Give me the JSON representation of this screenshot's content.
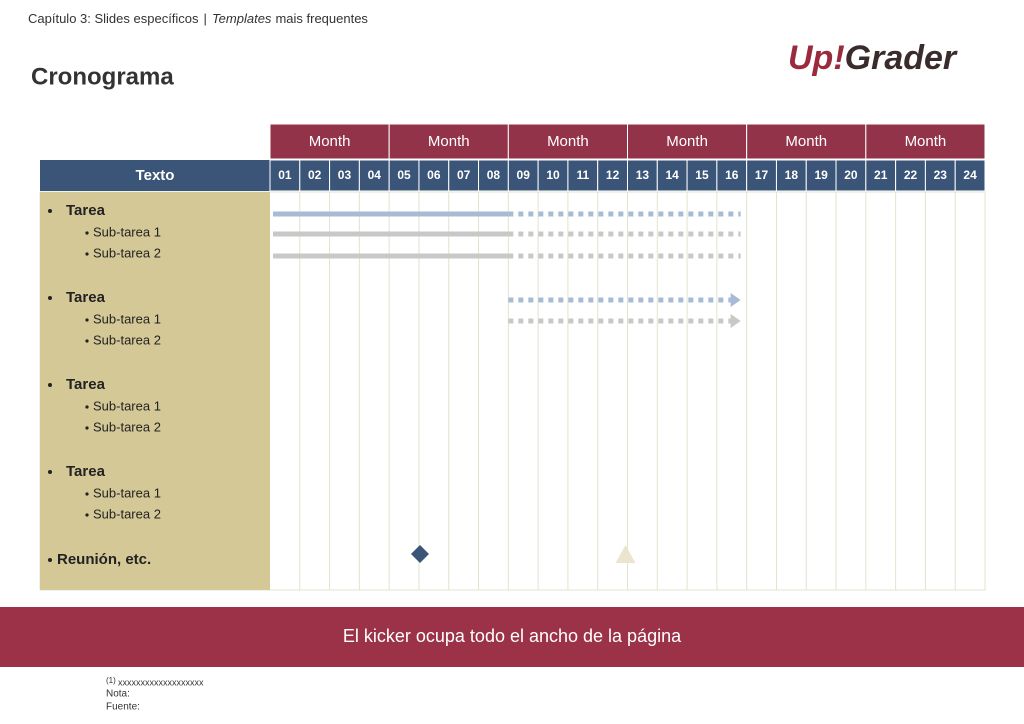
{
  "header": {
    "chapter": "Capítulo 3: Slides específicos",
    "separator": "|",
    "chapter_italic": "Templates",
    "chapter_rest": "mais frequentes",
    "title": "Cronograma",
    "logo_part1": "Up!",
    "logo_part2": "Grader"
  },
  "table": {
    "months": [
      "Month",
      "Month",
      "Month",
      "Month",
      "Month",
      "Month"
    ],
    "text_header": "Texto",
    "periods": [
      "01",
      "02",
      "03",
      "04",
      "05",
      "06",
      "07",
      "08",
      "09",
      "10",
      "11",
      "12",
      "13",
      "14",
      "15",
      "16",
      "17",
      "18",
      "19",
      "20",
      "21",
      "22",
      "23",
      "24"
    ],
    "tasks": [
      {
        "label": "Tarea",
        "subtasks": [
          "Sub-tarea 1",
          "Sub-tarea 2"
        ]
      },
      {
        "label": "Tarea",
        "subtasks": [
          "Sub-tarea 1",
          "Sub-tarea 2"
        ]
      },
      {
        "label": "Tarea",
        "subtasks": [
          "Sub-tarea 1",
          "Sub-tarea 2"
        ]
      },
      {
        "label": "Tarea",
        "subtasks": [
          "Sub-tarea 1",
          "Sub-tarea 2"
        ]
      }
    ],
    "milestone": "Reunión, etc."
  },
  "kicker": "El kicker ocupa todo el ancho de la página",
  "footnotes": {
    "marker": "(1)",
    "note1": "xxxxxxxxxxxxxxxxxxx",
    "nota": "Nota:",
    "fuente": "Fuente:"
  }
}
